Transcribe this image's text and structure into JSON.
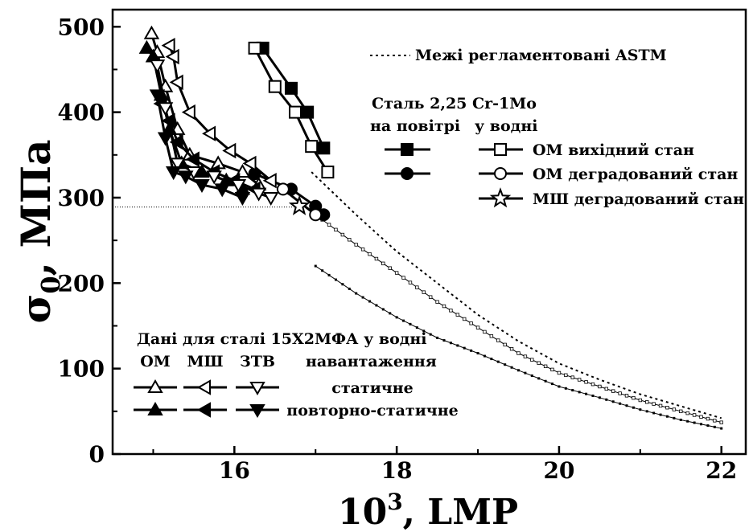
{
  "chart_data": {
    "type": "line",
    "xlabel": "10^3, LMP",
    "xlabel_parts": {
      "base": "10",
      "sup": "3",
      "rest": ", LMP"
    },
    "ylabel": "σ0, МПа",
    "ylabel_parts": {
      "sym": "σ",
      "sub": "0",
      "rest": ", МПа"
    },
    "xlim": [
      14.5,
      22.3
    ],
    "ylim": [
      0,
      520
    ],
    "xticks": [
      16,
      18,
      20,
      22
    ],
    "yticks": [
      0,
      100,
      200,
      300,
      400,
      500
    ],
    "astm_label": "Межі регламентовані ASTM",
    "steel_title": "Сталь 2,25 Cr-1Mo",
    "air_header": "на повітрі",
    "water_header": "у водні",
    "legend_entries": [
      {
        "label": "ОМ вихідний стан",
        "marker": "square"
      },
      {
        "label": "ОМ деградований стан",
        "marker": "circle"
      },
      {
        "label": "МШ деградований стан",
        "marker": "star"
      }
    ],
    "lower_legend": {
      "title": "Дані для сталі 15Х2МФА у водні",
      "col_labels": [
        "ОМ",
        "МШ",
        "ЗТВ"
      ],
      "loading_header": "навантаження",
      "row_labels": [
        "статичне",
        "повторно-статичне"
      ]
    },
    "series": [
      {
        "name": "ОМ вихідний стан (на повітрі)",
        "marker": "square",
        "filled": true,
        "x": [
          16.35,
          16.7,
          16.9,
          17.1
        ],
        "y": [
          475,
          428,
          400,
          358
        ]
      },
      {
        "name": "ОМ вихідний стан (у водні)",
        "marker": "square",
        "filled": false,
        "x": [
          16.25,
          16.5,
          16.75,
          16.95,
          17.15
        ],
        "y": [
          475,
          430,
          400,
          360,
          330
        ]
      },
      {
        "name": "ОМ деградований стан (на повітрі)",
        "marker": "circle",
        "filled": true,
        "x": [
          16.25,
          16.7,
          17.0,
          17.1
        ],
        "y": [
          328,
          310,
          290,
          280
        ]
      },
      {
        "name": "ОМ деградований стан (у водні)",
        "marker": "circle",
        "filled": false,
        "x": [
          16.6,
          17.0
        ],
        "y": [
          310,
          280
        ]
      },
      {
        "name": "МШ деградований стан",
        "marker": "star",
        "filled": false,
        "x": [
          16.8
        ],
        "y": [
          290
        ]
      },
      {
        "name": "15Х2МФА ОМ статичне",
        "marker": "tri-up",
        "filled": false,
        "x": [
          14.98,
          15.05,
          15.15,
          15.3,
          15.45,
          15.8,
          16.1,
          16.3
        ],
        "y": [
          492,
          470,
          430,
          380,
          350,
          340,
          330,
          315
        ]
      },
      {
        "name": "15Х2МФА ОМ повторно-статичне",
        "marker": "tri-up",
        "filled": true,
        "x": [
          14.92,
          15.0,
          15.1,
          15.2,
          15.35,
          15.6,
          15.9,
          16.1
        ],
        "y": [
          475,
          465,
          420,
          380,
          340,
          330,
          320,
          310
        ]
      },
      {
        "name": "15Х2МФА МШ статичне",
        "marker": "tri-left",
        "filled": false,
        "x": [
          15.2,
          15.25,
          15.3,
          15.45,
          15.7,
          15.95,
          16.2,
          16.45
        ],
        "y": [
          478,
          465,
          435,
          400,
          375,
          355,
          340,
          320
        ]
      },
      {
        "name": "15Х2МФА МШ повторно-статичне",
        "marker": "tri-left",
        "filled": true,
        "x": [
          15.1,
          15.2,
          15.3,
          15.5,
          15.75,
          16.0,
          16.25
        ],
        "y": [
          410,
          390,
          365,
          345,
          330,
          320,
          310
        ]
      },
      {
        "name": "15Х2МФА ЗТВ статичне",
        "marker": "tri-down",
        "filled": false,
        "x": [
          15.05,
          15.15,
          15.3,
          15.5,
          15.75,
          16.05,
          16.3,
          16.45
        ],
        "y": [
          455,
          405,
          340,
          330,
          325,
          315,
          305,
          300
        ]
      },
      {
        "name": "15Х2МФА ЗТВ повторно-статичне",
        "marker": "tri-down",
        "filled": true,
        "x": [
          15.05,
          15.15,
          15.25,
          15.4,
          15.6,
          15.85,
          16.1
        ],
        "y": [
          420,
          370,
          330,
          325,
          315,
          310,
          300
        ]
      }
    ],
    "astm_curves": [
      {
        "style": "dotted-dense",
        "x": [
          16.95,
          17.5,
          18.0,
          18.5,
          19.0,
          19.5,
          20.0,
          20.5,
          21.0,
          21.5,
          22.0
        ],
        "y": [
          330,
          280,
          237,
          200,
          163,
          132,
          106,
          87,
          70,
          56,
          42
        ]
      },
      {
        "style": "open-dots",
        "x": [
          17.0,
          17.5,
          18.0,
          18.5,
          19.0,
          19.5,
          20.0,
          20.5,
          21.0,
          21.5,
          22.0
        ],
        "y": [
          280,
          245,
          212,
          178,
          148,
          118,
          95,
          79,
          63,
          50,
          37
        ]
      },
      {
        "style": "filled-dots",
        "x": [
          17.0,
          17.5,
          18.0,
          18.5,
          19.0,
          19.5,
          20.0,
          20.5,
          21.0,
          21.5,
          22.0
        ],
        "y": [
          220,
          188,
          160,
          136,
          118,
          98,
          79,
          66,
          52,
          40,
          30
        ]
      }
    ],
    "reference_line_y": 289,
    "grid": false,
    "legend_position": "right"
  }
}
